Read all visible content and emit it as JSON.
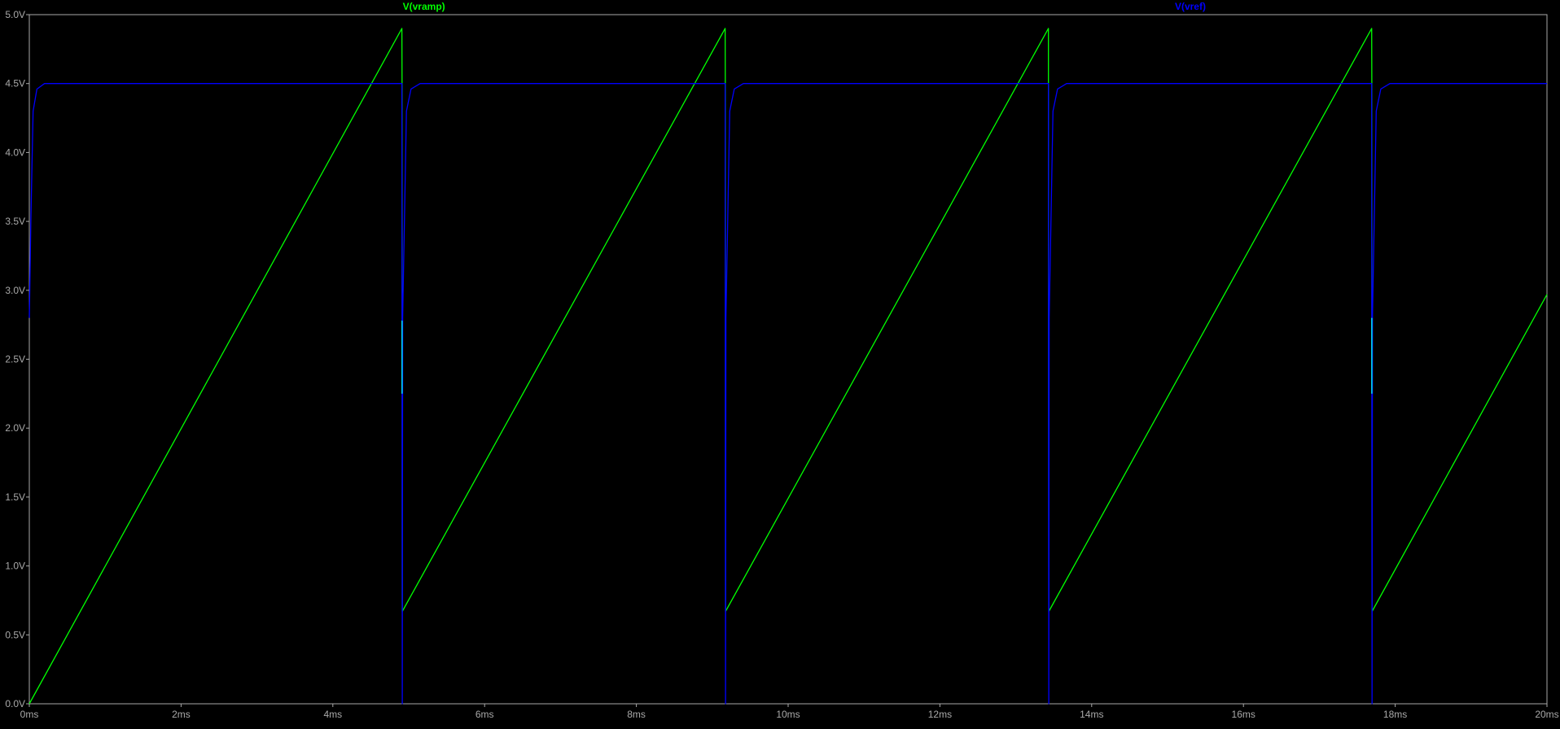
{
  "window": {
    "background": "#000000"
  },
  "chart_data": {
    "type": "line",
    "title": "",
    "xlabel": "",
    "ylabel": "",
    "x_unit": "ms",
    "y_unit": "V",
    "xlim": [
      0,
      20
    ],
    "ylim": [
      0,
      5
    ],
    "grid": false,
    "legend_placement": "top",
    "colors": {
      "frame": "#a9a9a9",
      "tick_text": "#a9a9a9"
    },
    "x_ticks": [
      {
        "value": 0,
        "label": "0ms"
      },
      {
        "value": 2,
        "label": "2ms"
      },
      {
        "value": 4,
        "label": "4ms"
      },
      {
        "value": 6,
        "label": "6ms"
      },
      {
        "value": 8,
        "label": "8ms"
      },
      {
        "value": 10,
        "label": "10ms"
      },
      {
        "value": 12,
        "label": "12ms"
      },
      {
        "value": 14,
        "label": "14ms"
      },
      {
        "value": 16,
        "label": "16ms"
      },
      {
        "value": 18,
        "label": "18ms"
      },
      {
        "value": 20,
        "label": "20ms"
      }
    ],
    "y_ticks": [
      {
        "value": 0.0,
        "label": "0.0V"
      },
      {
        "value": 0.5,
        "label": "0.5V"
      },
      {
        "value": 1.0,
        "label": "1.0V"
      },
      {
        "value": 1.5,
        "label": "1.5V"
      },
      {
        "value": 2.0,
        "label": "2.0V"
      },
      {
        "value": 2.5,
        "label": "2.5V"
      },
      {
        "value": 3.0,
        "label": "3.0V"
      },
      {
        "value": 3.5,
        "label": "3.5V"
      },
      {
        "value": 4.0,
        "label": "4.0V"
      },
      {
        "value": 4.5,
        "label": "4.5V"
      },
      {
        "value": 5.0,
        "label": "5.0V"
      }
    ],
    "series": [
      {
        "name": "V(vramp)",
        "color": "#00ff00",
        "points": [
          [
            0.0,
            0.0
          ],
          [
            4.91,
            4.9
          ],
          [
            4.912,
            4.5
          ],
          [
            4.915,
            0.67
          ],
          [
            9.17,
            4.9
          ],
          [
            9.172,
            4.5
          ],
          [
            9.175,
            0.67
          ],
          [
            13.43,
            4.9
          ],
          [
            13.432,
            2.8
          ],
          [
            13.435,
            0.67
          ],
          [
            17.69,
            4.9
          ],
          [
            17.692,
            4.5
          ],
          [
            17.695,
            0.67
          ],
          [
            20.0,
            2.97
          ]
        ]
      },
      {
        "name": "V(vref)",
        "color": "#0000ff",
        "points": [
          [
            0.0,
            2.8
          ],
          [
            0.02,
            3.5
          ],
          [
            0.05,
            4.3
          ],
          [
            0.1,
            4.46
          ],
          [
            0.2,
            4.5
          ],
          [
            4.91,
            4.5
          ],
          [
            4.915,
            0.0
          ],
          [
            4.92,
            2.8
          ],
          [
            4.97,
            4.3
          ],
          [
            5.03,
            4.46
          ],
          [
            5.15,
            4.5
          ],
          [
            9.17,
            4.5
          ],
          [
            9.175,
            0.0
          ],
          [
            9.18,
            2.8
          ],
          [
            9.23,
            4.3
          ],
          [
            9.29,
            4.46
          ],
          [
            9.41,
            4.5
          ],
          [
            13.43,
            4.5
          ],
          [
            13.435,
            0.0
          ],
          [
            13.44,
            2.8
          ],
          [
            13.49,
            4.3
          ],
          [
            13.55,
            4.46
          ],
          [
            13.67,
            4.5
          ],
          [
            17.69,
            4.5
          ],
          [
            17.695,
            0.0
          ],
          [
            17.7,
            2.8
          ],
          [
            17.75,
            4.3
          ],
          [
            17.81,
            4.46
          ],
          [
            17.93,
            4.5
          ],
          [
            20.0,
            4.5
          ]
        ]
      }
    ],
    "crossing_glitches": {
      "color": "#00ffff",
      "segments": [
        {
          "t": 4.912,
          "v_low": 2.25,
          "v_high": 2.78
        },
        {
          "t": 17.692,
          "v_low": 2.25,
          "v_high": 2.8
        }
      ]
    }
  }
}
